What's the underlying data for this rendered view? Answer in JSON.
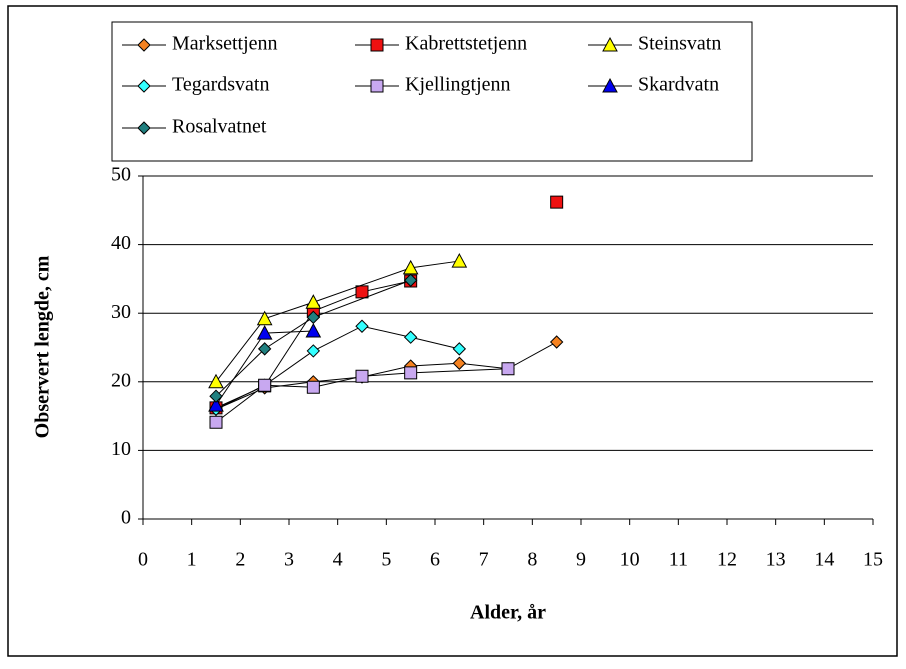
{
  "chart_data": {
    "type": "line",
    "xlabel": "Alder, år",
    "ylabel": "Observert lengde, cm",
    "xlim": [
      0,
      15
    ],
    "xticks": [
      0,
      1,
      2,
      3,
      4,
      5,
      6,
      7,
      8,
      9,
      10,
      11,
      12,
      13,
      14,
      15
    ],
    "ylim": [
      0,
      50
    ],
    "yticks": [
      0,
      10,
      20,
      30,
      40,
      50
    ],
    "grid": true,
    "legend": "top",
    "series": [
      {
        "name": "Marksettjenn",
        "color": "#f58220",
        "marker": "diamond",
        "x": [
          1.5,
          2.5,
          3.5,
          4.5,
          5.5,
          6.5,
          7.5,
          8.5
        ],
        "values": [
          16,
          19.1,
          20,
          20.7,
          22.3,
          22.7,
          21.9,
          25.8
        ]
      },
      {
        "name": "Kabrettstetjenn",
        "color": "#ee1111",
        "marker": "square",
        "x": [
          1.5,
          2.5,
          3.5,
          4.5,
          5.5,
          6.5,
          7.5,
          8.5
        ],
        "values": [
          16.2,
          19.4,
          30.3,
          33.1,
          34.7,
          null,
          null,
          46.2
        ]
      },
      {
        "name": "Steinsvatn",
        "color": "#ffff00",
        "marker": "triangle",
        "x": [
          1.5,
          2.5,
          3.5,
          5.5,
          6.5
        ],
        "values": [
          20,
          29.2,
          31.6,
          36.6,
          37.6
        ]
      },
      {
        "name": "Tegardsvatn",
        "color": "#33ffff",
        "marker": "diamond",
        "x": [
          1.5,
          2.5,
          3.5,
          4.5,
          5.5,
          6.5
        ],
        "values": [
          16,
          19.5,
          24.5,
          28.1,
          26.5,
          24.8
        ]
      },
      {
        "name": "Kjellingtjenn",
        "color": "#c8a8f0",
        "marker": "square",
        "x": [
          1.5,
          2.5,
          3.5,
          4.5,
          5.5,
          7.5
        ],
        "values": [
          14.1,
          19.5,
          19.2,
          20.8,
          21.3,
          21.9
        ]
      },
      {
        "name": "Skardvatn",
        "color": "#0000ee",
        "marker": "triangle",
        "x": [
          1.5,
          2.5,
          3.5
        ],
        "values": [
          16.6,
          27.1,
          27.4
        ]
      },
      {
        "name": "Rosalvatnet",
        "color": "#208080",
        "marker": "diamond",
        "x": [
          1.5,
          2.5,
          3.5,
          5.5
        ],
        "values": [
          17.9,
          24.8,
          29.4,
          34.8
        ]
      }
    ]
  }
}
